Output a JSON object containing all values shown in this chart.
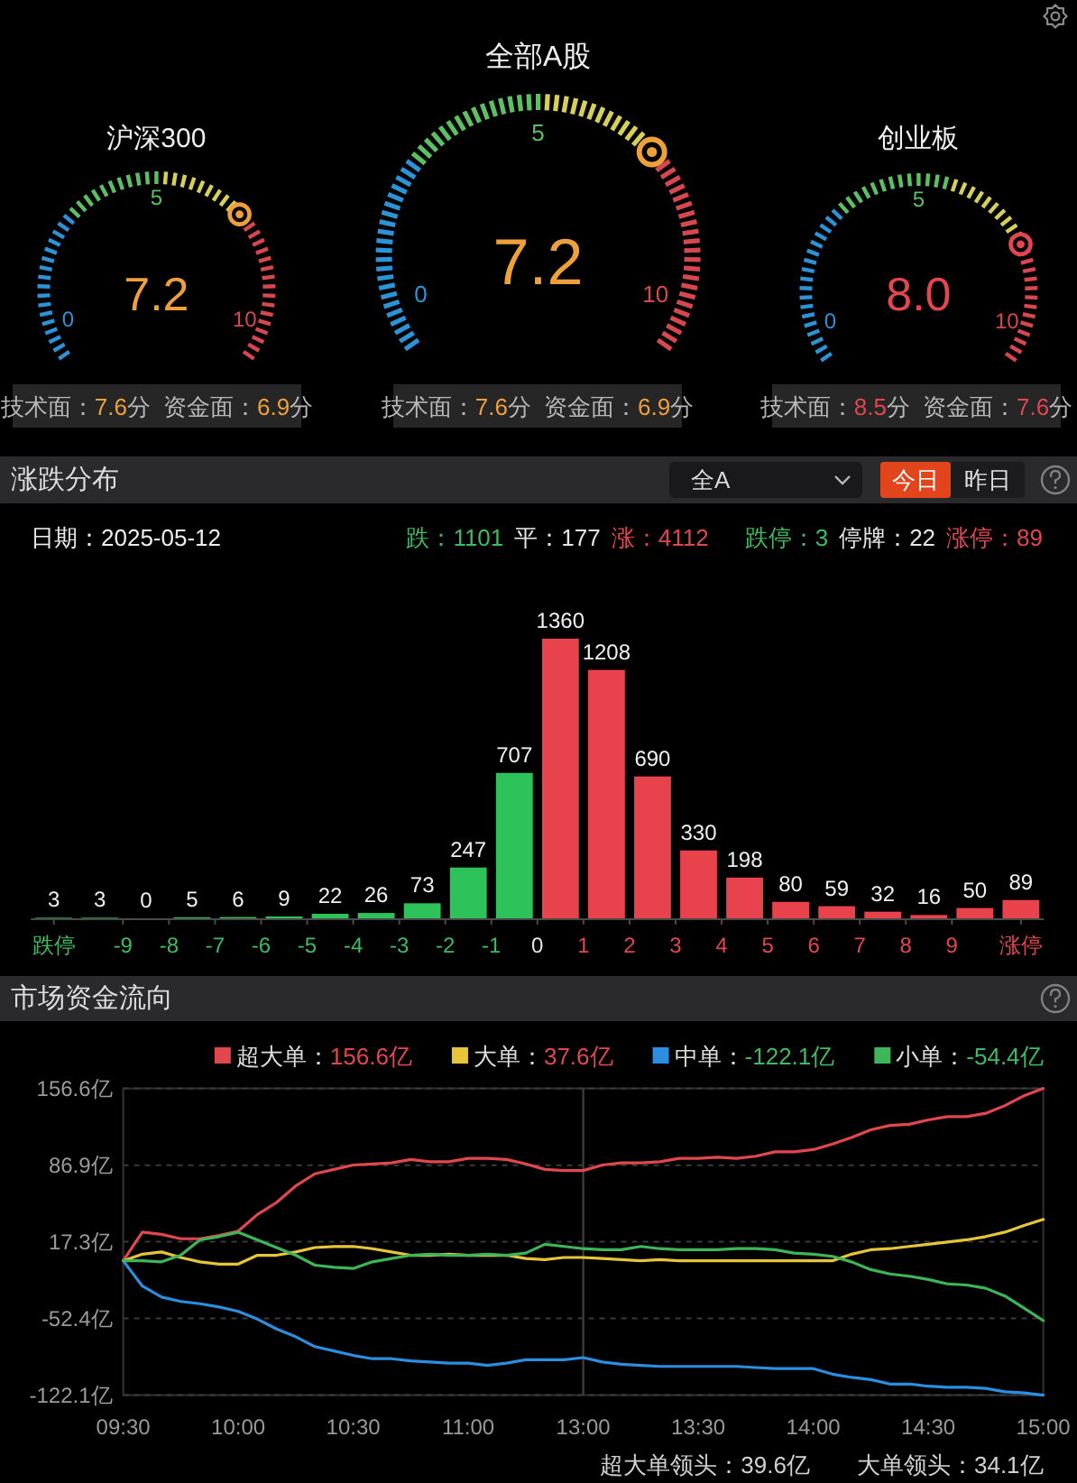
{
  "chart_data": [
    {
      "type": "other",
      "title": "沪深300",
      "values": [
        7.2
      ],
      "value_labels": [
        "7.2"
      ],
      "color": "#eea03c",
      "annotations": [
        "0",
        "5",
        "10",
        "技术面：7.6分",
        "资金面：6.9分"
      ]
    },
    {
      "type": "other",
      "title": "全部A股",
      "values": [
        7.2
      ],
      "value_labels": [
        "7.2"
      ],
      "color": "#eea03c",
      "annotations": [
        "0",
        "5",
        "10",
        "技术面：7.6分",
        "资金面：6.9分"
      ]
    },
    {
      "type": "other",
      "title": "创业板",
      "values": [
        8.0
      ],
      "value_labels": [
        "8.0"
      ],
      "color": "#e3464e",
      "annotations": [
        "0",
        "5",
        "10",
        "技术面：8.5分",
        "资金面：7.6分"
      ]
    },
    {
      "type": "bar",
      "title": "涨跌分布",
      "x": [
        -10.5,
        -9.5,
        -8.5,
        -7.5,
        -6.5,
        -5.5,
        -4.5,
        -3.5,
        -2.5,
        -1.5,
        -0.5,
        0.5,
        1.5,
        2.5,
        3.5,
        4.5,
        5.5,
        6.5,
        7.5,
        8.5,
        9.5,
        10.5
      ],
      "values": [
        3,
        3,
        0,
        5,
        6,
        9,
        22,
        26,
        73,
        247,
        707,
        1360,
        1208,
        690,
        330,
        198,
        80,
        59,
        32,
        16,
        50,
        89
      ],
      "colors": [
        "#2dc25a",
        "#2dc25a",
        "#2dc25a",
        "#2dc25a",
        "#2dc25a",
        "#2dc25a",
        "#2dc25a",
        "#2dc25a",
        "#2dc25a",
        "#2dc25a",
        "#2dc25a",
        "#e8424c",
        "#e8424c",
        "#e8424c",
        "#e8424c",
        "#e8424c",
        "#e8424c",
        "#e8424c",
        "#e8424c",
        "#e8424c",
        "#e8424c",
        "#e8424c"
      ],
      "xlim": [
        -11,
        11
      ],
      "xticks": [
        {
          "value": -10.5,
          "label": "跌停"
        },
        -9,
        -8,
        -7,
        -6,
        -5,
        -4,
        -3,
        -2,
        -1,
        0,
        1,
        2,
        3,
        4,
        5,
        6,
        7,
        8,
        9,
        {
          "value": 10.5,
          "label": "涨停"
        }
      ],
      "data_labels": true,
      "annotations": [
        "全A",
        "今日",
        "昨日",
        "日期：2025-05-12",
        "跌：1101",
        "平：177",
        "涨：4112",
        "跌停：3",
        "停牌：22",
        "涨停：89"
      ]
    },
    {
      "type": "line",
      "title": "市场资金流向",
      "categories": [
        "09:30",
        null,
        null,
        null,
        null,
        null,
        "10:00",
        null,
        null,
        null,
        null,
        null,
        "10:30",
        null,
        null,
        null,
        null,
        null,
        "11:00",
        null,
        null,
        null,
        null,
        null,
        "13:00",
        null,
        null,
        null,
        null,
        null,
        "13:30",
        null,
        null,
        null,
        null,
        null,
        "14:00",
        null,
        null,
        null,
        null,
        null,
        "14:30",
        null,
        null,
        null,
        null,
        null,
        "15:00"
      ],
      "ylim": [
        -122.1,
        156.6
      ],
      "yticks": [
        {
          "value": 156.6,
          "label": "156.6亿"
        },
        {
          "value": 86.9,
          "label": "86.9亿"
        },
        {
          "value": 17.3,
          "label": "17.3亿"
        },
        {
          "value": -52.4,
          "label": "-52.4亿"
        },
        {
          "value": -122.1,
          "label": "-122.1亿"
        }
      ],
      "grid": "y",
      "legend": "top right",
      "ref_lines": [
        {
          "axis": "x",
          "value": "13:00",
          "color": "#3c3c3c"
        }
      ],
      "series": [
        {
          "name": "超大单：156.6亿",
          "color": "#e0474f",
          "values": [
            0,
            26,
            24,
            20,
            20,
            23,
            27,
            42,
            53,
            68,
            79,
            83,
            87,
            88,
            89,
            92,
            90,
            90,
            93,
            93,
            92,
            88,
            83,
            82,
            82,
            87,
            89,
            89,
            90,
            93,
            93,
            94,
            93,
            95,
            99,
            99,
            101,
            106,
            112,
            119,
            123,
            124,
            128,
            131,
            131,
            134,
            141,
            150,
            156.6
          ]
        },
        {
          "name": "大单：37.6亿",
          "color": "#e6c53a",
          "values": [
            0,
            6,
            8,
            3,
            -1,
            -3,
            -3,
            5,
            5,
            8,
            12,
            13,
            13,
            11,
            8,
            5,
            5,
            6,
            5,
            5,
            5,
            2,
            1,
            3,
            3,
            2,
            1,
            0,
            1,
            0,
            0,
            0,
            0,
            0,
            0,
            0,
            0,
            0,
            6,
            10,
            11,
            13,
            15,
            17,
            19,
            22,
            26,
            32,
            37.6
          ]
        },
        {
          "name": "中单：-122.1亿",
          "color": "#2b8ee0",
          "values": [
            0,
            -23,
            -33,
            -37,
            -39,
            -42,
            -46,
            -53,
            -62,
            -69,
            -78,
            -82,
            -86,
            -89,
            -89,
            -91,
            -92,
            -93,
            -93,
            -95,
            -93,
            -90,
            -90,
            -90,
            -88,
            -92,
            -94,
            -95,
            -96,
            -96,
            -96,
            -96,
            -96,
            -97,
            -98,
            -98,
            -98,
            -103,
            -106,
            -108,
            -112,
            -112,
            -114,
            -115,
            -115,
            -116,
            -119,
            -120,
            -122.1
          ]
        },
        {
          "name": "小单：-54.4亿",
          "color": "#3fb559",
          "values": [
            0,
            0,
            -1,
            5,
            19,
            22,
            26,
            19,
            12,
            5,
            -4,
            -6,
            -7,
            -1,
            2,
            5,
            6,
            5,
            5,
            6,
            5,
            7,
            15,
            13,
            11,
            10,
            10,
            13,
            11,
            10,
            10,
            10,
            11,
            11,
            10,
            7,
            6,
            4,
            -1,
            -8,
            -12,
            -14,
            -17,
            -21,
            -22,
            -25,
            -32,
            -43,
            -54.4
          ]
        }
      ],
      "annotations": [
        "超大单领头：39.6亿",
        "大单领头：34.1亿"
      ]
    }
  ]
}
